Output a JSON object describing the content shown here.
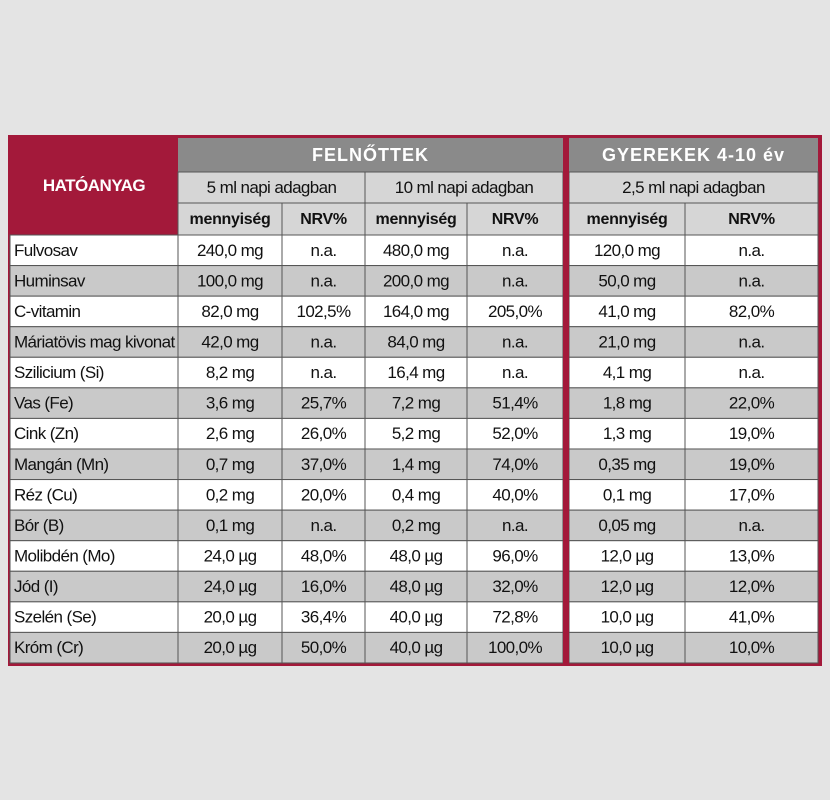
{
  "table": {
    "title": "HATÓANYAG",
    "groups": [
      "FELNŐTTEK",
      "GYEREKEK 4-10 év"
    ],
    "doses": [
      "5 ml napi adagban",
      "10 ml napi adagban",
      "2,5 ml napi adagban"
    ],
    "subheaders": [
      "mennyiség",
      "NRV%",
      "mennyiség",
      "NRV%",
      "mennyiség",
      "NRV%"
    ],
    "rows": [
      [
        "Fulvosav",
        "240,0 mg",
        "n.a.",
        "480,0 mg",
        "n.a.",
        "120,0 mg",
        "n.a."
      ],
      [
        "Huminsav",
        "100,0 mg",
        "n.a.",
        "200,0 mg",
        "n.a.",
        "50,0 mg",
        "n.a."
      ],
      [
        "C-vitamin",
        "82,0 mg",
        "102,5%",
        "164,0 mg",
        "205,0%",
        "41,0 mg",
        "82,0%"
      ],
      [
        "Máriatövis mag kivonat",
        "42,0 mg",
        "n.a.",
        "84,0 mg",
        "n.a.",
        "21,0 mg",
        "n.a."
      ],
      [
        "Szilicium (Si)",
        "8,2 mg",
        "n.a.",
        "16,4 mg",
        "n.a.",
        "4,1 mg",
        "n.a."
      ],
      [
        "Vas (Fe)",
        "3,6 mg",
        "25,7%",
        "7,2 mg",
        "51,4%",
        "1,8 mg",
        "22,0%"
      ],
      [
        "Cink (Zn)",
        "2,6 mg",
        "26,0%",
        "5,2 mg",
        "52,0%",
        "1,3 mg",
        "19,0%"
      ],
      [
        "Mangán (Mn)",
        "0,7 mg",
        "37,0%",
        "1,4 mg",
        "74,0%",
        "0,35 mg",
        "19,0%"
      ],
      [
        "Réz (Cu)",
        "0,2 mg",
        "20,0%",
        "0,4 mg",
        "40,0%",
        "0,1 mg",
        "17,0%"
      ],
      [
        "Bór (B)",
        "0,1 mg",
        "n.a.",
        "0,2 mg",
        "n.a.",
        "0,05 mg",
        "n.a."
      ],
      [
        "Molibdén (Mo)",
        "24,0 µg",
        "48,0%",
        "48,0 µg",
        "96,0%",
        "12,0 µg",
        "13,0%"
      ],
      [
        "Jód (I)",
        "24,0 µg",
        "16,0%",
        "48,0 µg",
        "32,0%",
        "12,0 µg",
        "12,0%"
      ],
      [
        "Szelén (Se)",
        "20,0 µg",
        "36,4%",
        "40,0 µg",
        "72,8%",
        "10,0 µg",
        "41,0%"
      ],
      [
        "Króm (Cr)",
        "20,0 µg",
        "50,0%",
        "40,0 µg",
        "100,0%",
        "10,0 µg",
        "10,0%"
      ]
    ]
  }
}
